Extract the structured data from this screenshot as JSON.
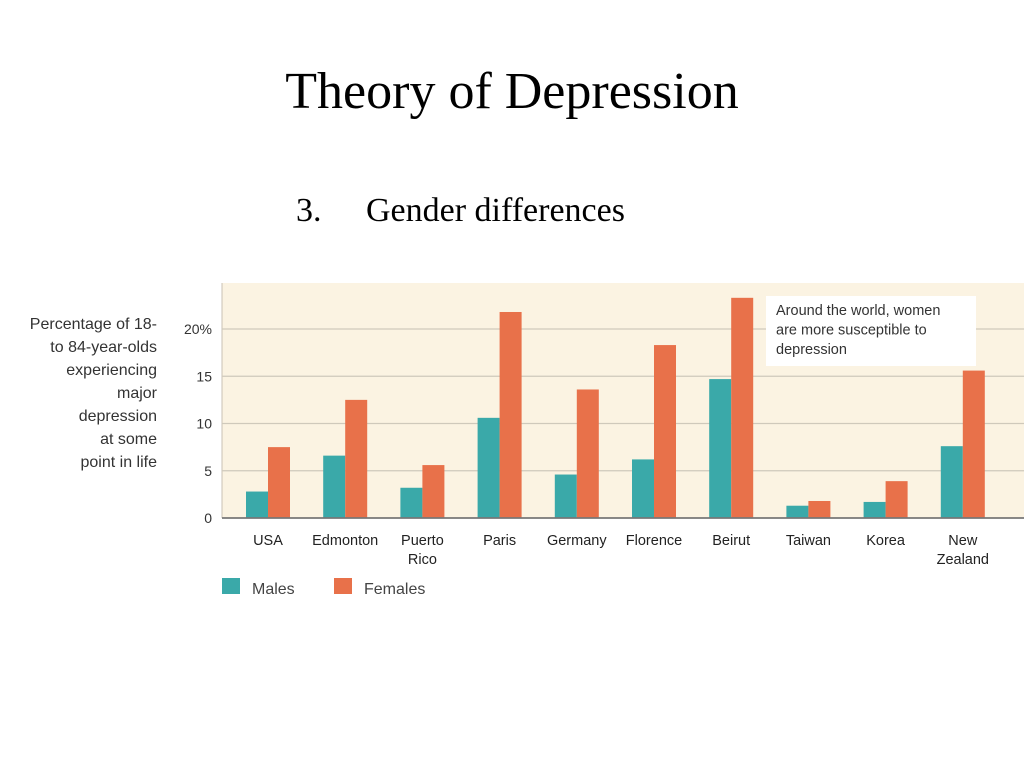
{
  "slide": {
    "title": "Theory of Depression",
    "subtitle_number": "3.",
    "subtitle_text": "Gender differences"
  },
  "chart_data": {
    "type": "bar",
    "ylabel_lines": [
      "Percentage of 18-",
      "to 84-year-olds",
      "experiencing",
      "major",
      "depression",
      "at some",
      "point in life"
    ],
    "ylim": [
      0,
      24
    ],
    "yticks": [
      {
        "value": 0,
        "label": "0"
      },
      {
        "value": 5,
        "label": "5"
      },
      {
        "value": 10,
        "label": "10"
      },
      {
        "value": 15,
        "label": "15"
      },
      {
        "value": 20,
        "label": "20%"
      }
    ],
    "grid": true,
    "categories": [
      [
        "USA"
      ],
      [
        "Edmonton"
      ],
      [
        "Puerto",
        "Rico"
      ],
      [
        "Paris"
      ],
      [
        "Germany"
      ],
      [
        "Florence"
      ],
      [
        "Beirut"
      ],
      [
        "Taiwan"
      ],
      [
        "Korea"
      ],
      [
        "New",
        "Zealand"
      ]
    ],
    "series": [
      {
        "name": "Males",
        "color": "#3aa9a9",
        "values": [
          2.8,
          6.6,
          3.2,
          10.6,
          4.6,
          6.2,
          14.7,
          1.3,
          1.7,
          7.6
        ]
      },
      {
        "name": "Females",
        "color": "#e8714a",
        "values": [
          7.5,
          12.5,
          5.6,
          21.8,
          13.6,
          18.3,
          23.3,
          1.8,
          3.9,
          15.6
        ]
      }
    ],
    "annotation_lines": [
      "Around the world, women",
      "are more susceptible to",
      "depression"
    ],
    "plot_background": "#fbf3e2",
    "legend_position": "bottom-left"
  }
}
